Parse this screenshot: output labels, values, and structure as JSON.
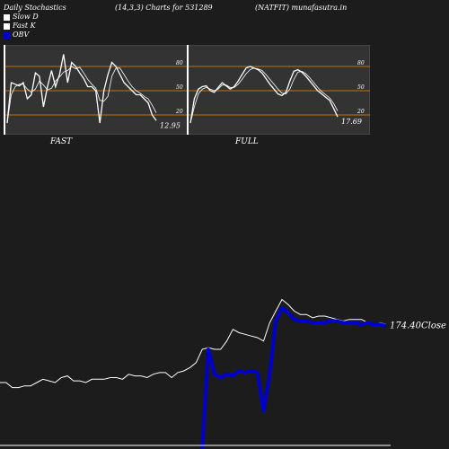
{
  "header": {
    "title": "Daily Stochastics",
    "params": "(14,3,3) Charts for 531289",
    "symbol": "(NATFIT) munafasutra.in"
  },
  "legend": [
    {
      "label": "Slow  D",
      "color": "#ffffff"
    },
    {
      "label": "Fast K",
      "color": "#ffffff"
    },
    {
      "label": "OBV",
      "color": "#0000cc"
    }
  ],
  "colors": {
    "background": "#1c1c1c",
    "panel": "#333333",
    "guide": "#c07000",
    "obv": "#0000cc",
    "price": "#ffffff"
  },
  "chart_data": [
    {
      "type": "line",
      "panel_label": "FAST",
      "last_value_label": "12.95",
      "ylim": [
        0,
        100
      ],
      "guide_levels": [
        20,
        50,
        80
      ],
      "tick_labels": [
        "80",
        "50",
        "20"
      ],
      "series": [
        {
          "values": [
            10,
            60,
            58,
            56,
            60,
            40,
            45,
            72,
            68,
            30,
            55,
            75,
            55,
            70,
            95,
            60,
            85,
            80,
            72,
            65,
            55,
            55,
            50,
            10,
            50,
            70,
            85,
            80,
            70,
            60,
            55,
            50,
            45,
            45,
            40,
            35,
            20,
            12.95
          ]
        },
        {
          "values": [
            10,
            45,
            55,
            58,
            58,
            52,
            48,
            52,
            62,
            57,
            51,
            53,
            62,
            67,
            73,
            75,
            80,
            77,
            79,
            72,
            64,
            58,
            53,
            38,
            37,
            43,
            68,
            78,
            78,
            70,
            62,
            55,
            50,
            47,
            43,
            40,
            32,
            22.65
          ]
        }
      ]
    },
    {
      "type": "line",
      "panel_label": "FULL",
      "last_value_label": "17.69",
      "ylim": [
        0,
        100
      ],
      "guide_levels": [
        20,
        50,
        80
      ],
      "tick_labels": [
        "80",
        "50",
        "20"
      ],
      "series": [
        {
          "values": [
            10,
            40,
            52,
            55,
            56,
            50,
            48,
            54,
            60,
            56,
            52,
            55,
            62,
            70,
            78,
            80,
            78,
            76,
            72,
            65,
            58,
            52,
            46,
            44,
            48,
            62,
            74,
            76,
            73,
            68,
            62,
            56,
            50,
            46,
            42,
            38,
            28,
            17.69
          ]
        },
        {
          "values": [
            10,
            30,
            46,
            52,
            54,
            52,
            50,
            52,
            57,
            57,
            54,
            54,
            58,
            64,
            71,
            76,
            78,
            77,
            75,
            70,
            64,
            58,
            52,
            47,
            46,
            52,
            64,
            73,
            74,
            71,
            66,
            60,
            54,
            49,
            45,
            41,
            34,
            25
          ]
        }
      ]
    },
    {
      "type": "line",
      "close_label": "174.40Close",
      "series": [
        {
          "name": "Close",
          "values": [
            40,
            40,
            37,
            37,
            38,
            38,
            40,
            42,
            41,
            40,
            43,
            44,
            41,
            41,
            40,
            42,
            42,
            42,
            43,
            43,
            42,
            45,
            44,
            44,
            43,
            45,
            46,
            46,
            43,
            46,
            47,
            49,
            52,
            60,
            61,
            60,
            60,
            65,
            72,
            70,
            69,
            68,
            67,
            65,
            76,
            83,
            90,
            87,
            83,
            81,
            81,
            79,
            80,
            80,
            79,
            78,
            77,
            78,
            78,
            78,
            76,
            75,
            76,
            75
          ]
        },
        {
          "name": "OBV",
          "values": [
            null,
            null,
            null,
            null,
            null,
            null,
            null,
            null,
            null,
            null,
            null,
            null,
            null,
            null,
            null,
            null,
            null,
            null,
            null,
            null,
            null,
            null,
            null,
            null,
            null,
            null,
            null,
            null,
            null,
            null,
            null,
            null,
            null,
            0,
            60,
            45,
            43,
            45,
            44,
            47,
            46,
            47,
            46,
            23,
            45,
            77,
            85,
            82,
            78,
            77,
            77,
            76,
            76,
            76,
            77,
            77,
            76,
            76,
            76,
            75,
            76,
            75,
            75,
            74
          ]
        }
      ]
    }
  ]
}
